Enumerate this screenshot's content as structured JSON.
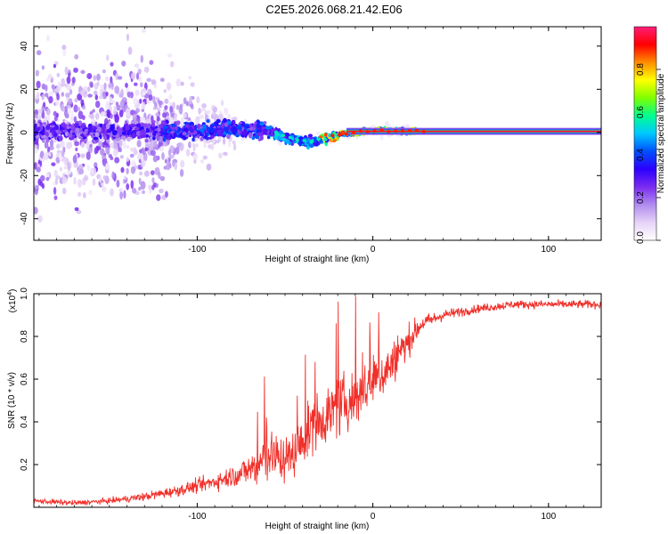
{
  "title": "C2E5.2026.068.21.42.E06",
  "chart_data": [
    {
      "type": "heatmap",
      "name": "spectrogram",
      "xlabel": "Height of straight line (km)",
      "ylabel": "Frequency (Hz)",
      "xlim": [
        -193,
        130
      ],
      "ylim": [
        -50,
        49
      ],
      "x_ticks": [
        -100,
        0,
        100
      ],
      "y_ticks": [
        -40,
        -20,
        0,
        20,
        40
      ],
      "colorbar": {
        "label": "Normalized spectral amplitude",
        "range": [
          0,
          1
        ],
        "ticks": [
          0,
          0.2,
          0.4,
          0.6,
          0.8
        ],
        "tick_labels": [
          "0.0",
          "0.2",
          "0.4",
          "0.6",
          "0.8"
        ],
        "colors": [
          "#ffffff",
          "#e6d3f7",
          "#b08cef",
          "#7a2bf0",
          "#2c00ff",
          "#0050ff",
          "#00c8ff",
          "#00ff90",
          "#7fff00",
          "#ffff00",
          "#ff8c00",
          "#ff0000",
          "#ff1e78"
        ]
      },
      "ridge": [
        {
          "x": -120,
          "y": 0.5
        },
        {
          "x": -80,
          "y": 1.5
        },
        {
          "x": -60,
          "y": 1
        },
        {
          "x": -45,
          "y": -3
        },
        {
          "x": -35,
          "y": -4.5
        },
        {
          "x": -20,
          "y": -1
        },
        {
          "x": -10,
          "y": 0
        },
        {
          "x": 5,
          "y": 1
        },
        {
          "x": 20,
          "y": 0.5
        },
        {
          "x": 130,
          "y": 0.5
        }
      ]
    },
    {
      "type": "line",
      "name": "snr",
      "xlabel": "Height of straight line (km)",
      "ylabel": "SNR (10 * v/v)",
      "y_multiplier": "(x10",
      "y_multiplier_exp": "4",
      "y_multiplier_close": ")",
      "xlim": [
        -193,
        130
      ],
      "ylim": [
        0,
        1.0
      ],
      "x_ticks": [
        -100,
        0,
        100
      ],
      "y_ticks": [
        0.2,
        0.4,
        0.6,
        0.8,
        1.0
      ],
      "y_tick_labels": [
        "0.2",
        "0.4",
        "0.6",
        "0.8",
        "1.0"
      ],
      "series": [
        {
          "name": "SNR",
          "color": "#f0302a",
          "x": [
            -193,
            -170,
            -150,
            -130,
            -110,
            -90,
            -75,
            -65,
            -58,
            -50,
            -42,
            -35,
            -28,
            -20,
            -12,
            -5,
            5,
            12,
            20,
            28,
            40,
            60,
            80,
            100,
            130
          ],
          "y": [
            0.03,
            0.02,
            0.03,
            0.05,
            0.08,
            0.12,
            0.16,
            0.2,
            0.25,
            0.22,
            0.28,
            0.38,
            0.42,
            0.47,
            0.5,
            0.55,
            0.62,
            0.68,
            0.78,
            0.86,
            0.9,
            0.93,
            0.95,
            0.95,
            0.95
          ],
          "noise_amplitude": [
            0.02,
            0.02,
            0.02,
            0.03,
            0.04,
            0.06,
            0.09,
            0.15,
            0.18,
            0.16,
            0.18,
            0.2,
            0.2,
            0.22,
            0.2,
            0.2,
            0.18,
            0.15,
            0.12,
            0.06,
            0.04,
            0.03,
            0.03,
            0.03,
            0.03
          ]
        }
      ]
    }
  ]
}
